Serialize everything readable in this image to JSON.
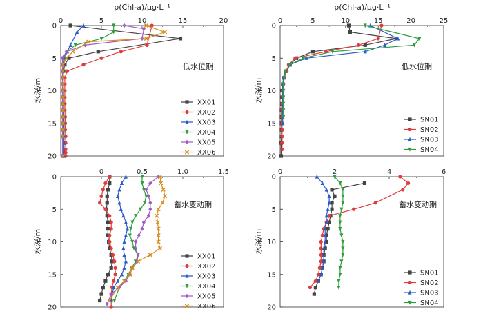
{
  "figure": {
    "top_axis_label": "ρ(Chl-a)/μg·L⁻¹",
    "y_axis_label": "水深/m"
  },
  "chart_data": [
    {
      "id": "a",
      "type": "line",
      "period_label": "低水位期",
      "xlim": [
        0,
        20
      ],
      "xticks": [
        0,
        5,
        10,
        15,
        20
      ],
      "ylim": [
        0,
        20
      ],
      "yticks": [
        0,
        5,
        10,
        15,
        20
      ],
      "y_inverted": true,
      "xlabel": "ρ(Chl-a)/μg·L⁻¹",
      "ylabel": "水深/m",
      "legend_position": "bottom-right",
      "series": [
        {
          "name": "XX01",
          "color": "#444444",
          "marker": "square",
          "x": [
            1.2,
            14.7,
            4.6,
            1.0,
            0.5,
            0.35,
            0.3,
            0.3,
            0.3,
            0.3,
            0.3,
            0.35,
            0.35,
            0.4,
            0.4,
            0.4,
            0.4,
            0.4,
            0.4,
            0.4,
            0.4
          ],
          "y": [
            0,
            2,
            4,
            5,
            6,
            7,
            8,
            9,
            10,
            11,
            12,
            13,
            14,
            15,
            16,
            17,
            18,
            19,
            19.5,
            20,
            20
          ]
        },
        {
          "name": "XX02",
          "color": "#e03c3c",
          "marker": "circle",
          "x": [
            11.2,
            10.6,
            7.4,
            5.0,
            2.8,
            0.8,
            0.5,
            0.5,
            0.5,
            0.5,
            0.5,
            0.5,
            0.55,
            0.55,
            0.55,
            0.6,
            0.6,
            0.6,
            0.6,
            0.6
          ],
          "y": [
            0,
            3,
            4,
            5,
            6,
            7,
            8,
            9,
            10,
            11,
            12,
            13,
            14,
            15,
            16,
            17,
            18,
            19,
            19.5,
            20
          ]
        },
        {
          "name": "XX03",
          "color": "#2a5cc8",
          "marker": "triangle",
          "x": [
            2.8,
            2.0,
            1.2,
            0.8,
            0.5,
            0.3,
            0.3,
            0.3,
            0.3,
            0.35,
            0.35,
            0.35,
            0.35,
            0.4,
            0.4,
            0.4,
            0.4,
            0.4,
            0.4
          ],
          "y": [
            0,
            1,
            3,
            4,
            5,
            6,
            7,
            8,
            9,
            10,
            11,
            12,
            13,
            14,
            15,
            16,
            17,
            18,
            20
          ]
        },
        {
          "name": "XX04",
          "color": "#2e9e3e",
          "marker": "triangle-down",
          "x": [
            6.5,
            6.5,
            5.0,
            1.8,
            0.8,
            0.3,
            0.3,
            0.3,
            0.3,
            0.3,
            0.3,
            0.3,
            0.3,
            0.3,
            0.3,
            0.3,
            0.3,
            0.3,
            0.3
          ],
          "y": [
            0,
            1,
            2,
            3,
            4,
            5,
            6,
            7,
            8,
            9,
            10,
            11,
            12,
            13,
            14,
            15,
            16,
            17,
            20
          ]
        },
        {
          "name": "XX05",
          "color": "#a25bc6",
          "marker": "diamond",
          "x": [
            7.8,
            10.2,
            10.0,
            3.0,
            0.7,
            0.2,
            0.2,
            0.2,
            0.2,
            0.2,
            0.2,
            0.2,
            0.2,
            0.2,
            0.2,
            0.2,
            0.2,
            0.2,
            0.2
          ],
          "y": [
            0,
            0.5,
            2,
            3,
            4,
            5,
            6,
            7,
            8,
            9,
            10,
            11,
            12,
            13,
            14,
            15,
            16,
            17,
            20
          ]
        },
        {
          "name": "XX06",
          "color": "#d98d1c",
          "marker": "x",
          "x": [
            10.5,
            12.8,
            10.5,
            3.4,
            1.5,
            0.7,
            0.3,
            0.3,
            0.3,
            0.3,
            0.3,
            0.3,
            0.3,
            0.3,
            0.3,
            0.3,
            0.3,
            0.3,
            0.3
          ],
          "y": [
            0,
            1,
            2,
            2.5,
            4,
            5,
            6,
            7,
            8,
            9,
            10,
            11,
            12,
            13,
            14,
            15,
            16,
            17,
            20
          ]
        }
      ]
    },
    {
      "id": "b",
      "type": "line",
      "period_label": "低水位期",
      "xlim": [
        0,
        25
      ],
      "xticks": [
        0,
        5,
        10,
        15,
        20,
        25
      ],
      "ylim": [
        0,
        20
      ],
      "yticks": [
        0,
        5,
        10,
        15,
        20
      ],
      "y_inverted": true,
      "xlabel": "ρ(Chl-a)/μg·L⁻¹",
      "ylabel": "水深/m",
      "legend_position": "bottom-right",
      "series": [
        {
          "name": "SN01",
          "color": "#444444",
          "marker": "square",
          "x": [
            10.5,
            10.7,
            17.8,
            13.0,
            5.0,
            2.5,
            1.5,
            1.0,
            0.6,
            0.4,
            0.3,
            0.3,
            0.25,
            0.2,
            0.2,
            0.2,
            0.2,
            0.2,
            0.15,
            0.15
          ],
          "y": [
            0,
            1,
            2,
            3,
            4,
            5,
            6,
            7,
            8,
            9,
            10,
            11,
            12,
            13,
            14,
            15,
            16,
            17,
            18,
            20
          ]
        },
        {
          "name": "SN02",
          "color": "#e03c3c",
          "marker": "circle",
          "x": [
            15.5,
            15.0,
            12.0,
            7.0,
            2.3,
            1.3,
            1.0,
            0.6,
            0.5,
            0.4,
            0.4,
            0.3,
            0.3,
            0.3,
            0.3,
            0.3,
            0.3,
            0.3,
            0.3
          ],
          "y": [
            0,
            2,
            3,
            4,
            5,
            6,
            7,
            8,
            9,
            10,
            11,
            12,
            13,
            14,
            15,
            16,
            17,
            18,
            19
          ]
        },
        {
          "name": "SN03",
          "color": "#2a5cc8",
          "marker": "triangle",
          "x": [
            13.8,
            18.0,
            16.0,
            13.0,
            4.0,
            1.5,
            0.8,
            0.5,
            0.4,
            0.4,
            0.4,
            0.4,
            0.4,
            0.4,
            0.4
          ],
          "y": [
            0,
            2,
            3,
            4,
            5,
            6,
            7,
            8,
            9,
            10,
            11,
            12,
            13,
            14,
            15
          ]
        },
        {
          "name": "SN04",
          "color": "#2e9e3e",
          "marker": "triangle-down",
          "x": [
            13.0,
            21.3,
            20.5,
            8.0,
            3.5,
            1.5,
            0.8,
            0.6,
            0.5,
            0.5,
            0.5,
            0.5,
            0.5,
            0.5
          ],
          "y": [
            0,
            2,
            3,
            4,
            5,
            6,
            7,
            8,
            9,
            10,
            11,
            12,
            13,
            14
          ]
        }
      ]
    },
    {
      "id": "c",
      "type": "line",
      "period_label": "蓄水变动期",
      "xlim": [
        -0.5,
        1.5
      ],
      "xticks": [
        0,
        0.5,
        1.0,
        1.5
      ],
      "xtick_labels": [
        "0",
        "0.5",
        "1.0",
        "1.5"
      ],
      "ylim": [
        0,
        20
      ],
      "yticks": [
        0,
        5,
        10,
        15,
        20
      ],
      "y_inverted": true,
      "xlabel": "",
      "ylabel": "水深/m",
      "legend_position": "bottom-right",
      "series": [
        {
          "name": "XX01",
          "color": "#444444",
          "marker": "square",
          "x": [
            0.1,
            0.1,
            0.08,
            0.07,
            0.07,
            0.06,
            0.07,
            0.08,
            0.08,
            0.08,
            0.09,
            0.1,
            0.12,
            0.13,
            0.12,
            0.08,
            0.05,
            0.02,
            0.0,
            -0.02
          ],
          "y": [
            0,
            1,
            2,
            3,
            4,
            5,
            6,
            7,
            8,
            9,
            10,
            11,
            12,
            13,
            14,
            15,
            16,
            17,
            18,
            19
          ]
        },
        {
          "name": "XX02",
          "color": "#e03c3c",
          "marker": "circle",
          "x": [
            0.1,
            0.05,
            0.02,
            0.0,
            -0.02,
            0.05,
            0.1,
            0.12,
            0.12,
            0.1,
            0.1,
            0.12,
            0.14,
            0.16,
            0.17,
            0.17,
            0.15,
            0.13,
            0.12,
            0.12,
            0.12
          ],
          "y": [
            0,
            1,
            2,
            3,
            4,
            5,
            6,
            7,
            8,
            9,
            10,
            11,
            12,
            13,
            14,
            15,
            16,
            17,
            18,
            19,
            20
          ]
        },
        {
          "name": "XX03",
          "color": "#2a5cc8",
          "marker": "triangle",
          "x": [
            0.3,
            0.25,
            0.22,
            0.2,
            0.22,
            0.24,
            0.27,
            0.3,
            0.32,
            0.3,
            0.28,
            0.27,
            0.28,
            0.3,
            0.28,
            0.25,
            0.2,
            0.15,
            0.12
          ],
          "y": [
            0,
            1,
            2,
            3,
            4,
            5,
            6,
            7,
            8,
            9,
            10,
            11,
            12,
            13,
            14,
            15,
            16,
            17,
            19
          ]
        },
        {
          "name": "XX04",
          "color": "#2e9e3e",
          "marker": "triangle-down",
          "x": [
            0.5,
            0.5,
            0.52,
            0.55,
            0.53,
            0.48,
            0.42,
            0.38,
            0.36,
            0.35,
            0.38,
            0.4,
            0.45,
            0.42,
            0.37,
            0.33,
            0.28,
            0.22,
            0.16
          ],
          "y": [
            0,
            1,
            2,
            3,
            4,
            5,
            6,
            7,
            8,
            9,
            10,
            11,
            12,
            13,
            14,
            15,
            16,
            17,
            19
          ]
        },
        {
          "name": "XX05",
          "color": "#a25bc6",
          "marker": "diamond",
          "x": [
            0.7,
            0.6,
            0.55,
            0.58,
            0.6,
            0.6,
            0.58,
            0.52,
            0.5,
            0.46,
            0.42,
            0.42,
            0.45,
            0.44,
            0.38,
            0.35,
            0.3,
            0.22,
            0.12,
            0.07
          ],
          "y": [
            0,
            1,
            2,
            3,
            4,
            5,
            6,
            7,
            8,
            9,
            10,
            11,
            12,
            13,
            14,
            15,
            16,
            17,
            18,
            19.5
          ]
        },
        {
          "name": "XX06",
          "color": "#d98d1c",
          "marker": "x",
          "x": [
            0.72,
            0.73,
            0.76,
            0.78,
            0.75,
            0.7,
            0.68,
            0.69,
            0.7,
            0.7,
            0.7,
            0.72,
            0.6,
            0.45,
            0.38,
            0.35,
            0.28,
            0.2,
            0.1
          ],
          "y": [
            0,
            1,
            2,
            3,
            4,
            5,
            6,
            7,
            8,
            9,
            10,
            11,
            12,
            13,
            14,
            15,
            16,
            17,
            19
          ]
        }
      ]
    },
    {
      "id": "d",
      "type": "line",
      "period_label": "蓄水变动期",
      "xlim": [
        0,
        6
      ],
      "xticks": [
        0,
        2,
        4,
        6
      ],
      "ylim": [
        0,
        20
      ],
      "yticks": [
        0,
        5,
        10,
        15,
        20
      ],
      "y_inverted": true,
      "xlabel": "",
      "ylabel": "水深/m",
      "legend_position": "bottom-right",
      "series": [
        {
          "name": "SN01",
          "color": "#444444",
          "marker": "square",
          "x": [
            3.1,
            1.9,
            2.0,
            1.9,
            1.9,
            1.85,
            1.8,
            1.75,
            1.7,
            1.7,
            1.65,
            1.6,
            1.6,
            1.55,
            1.5,
            1.4,
            1.3,
            1.25
          ],
          "y": [
            1,
            2,
            3,
            4,
            5,
            6,
            7,
            8,
            9,
            10,
            11,
            12,
            13,
            14,
            15,
            16,
            17,
            18
          ]
        },
        {
          "name": "SN02",
          "color": "#e03c3c",
          "marker": "circle",
          "x": [
            4.4,
            4.7,
            4.5,
            3.5,
            2.7,
            1.8,
            1.7,
            1.6,
            1.55,
            1.5,
            1.5,
            1.5,
            1.5,
            1.45,
            1.4,
            1.3,
            1.1
          ],
          "y": [
            0,
            1,
            2,
            4,
            5,
            6,
            7,
            8,
            9,
            10,
            11,
            12,
            13,
            14,
            15,
            16,
            17
          ]
        },
        {
          "name": "SN03",
          "color": "#2a5cc8",
          "marker": "triangle",
          "x": [
            1.35,
            1.55,
            1.7,
            1.8,
            1.8,
            1.75,
            1.7,
            1.7,
            1.65,
            1.65,
            1.65,
            1.6,
            1.6,
            1.6,
            1.55,
            1.5,
            1.4
          ],
          "y": [
            0,
            1,
            2,
            3,
            4,
            5,
            6,
            7,
            8,
            9,
            10,
            11,
            12,
            13,
            14,
            15,
            16
          ]
        },
        {
          "name": "SN04",
          "color": "#2e9e3e",
          "marker": "triangle-down",
          "x": [
            2.0,
            2.2,
            2.3,
            2.3,
            2.3,
            2.25,
            2.2,
            2.2,
            2.2,
            2.25,
            2.3,
            2.3,
            2.3,
            2.25,
            2.2,
            2.2,
            2.15,
            2.15
          ],
          "y": [
            0,
            1,
            2,
            3,
            4,
            5,
            6,
            7,
            8,
            9,
            10,
            11,
            12,
            13,
            14,
            15,
            16,
            17
          ]
        }
      ]
    }
  ]
}
